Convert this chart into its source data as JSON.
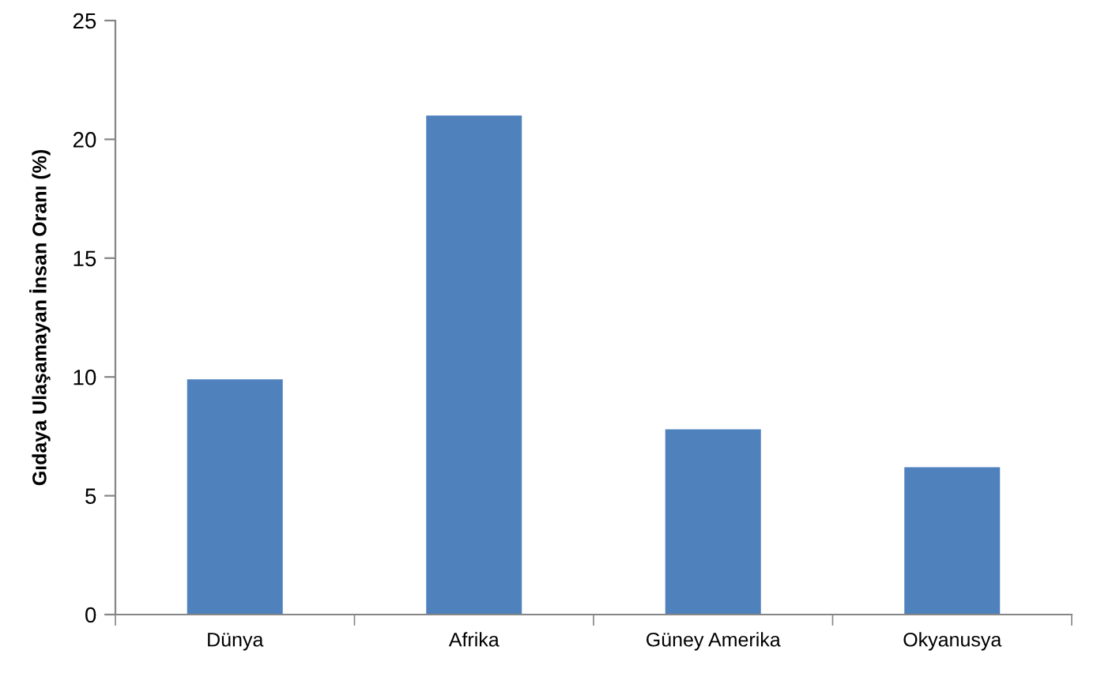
{
  "chart_data": {
    "type": "bar",
    "ylabel": "Gıdaya Ulaşamayan İnsan Oranı (%)",
    "categories": [
      "Dünya",
      "Afrika",
      "Güney Amerika",
      "Okyanusya"
    ],
    "values": [
      9.9,
      21.0,
      7.8,
      6.2
    ],
    "color": "#4f81bd",
    "ylim": [
      0,
      25
    ],
    "yticks": [
      0,
      5,
      10,
      15,
      20,
      25
    ],
    "grid": false
  }
}
